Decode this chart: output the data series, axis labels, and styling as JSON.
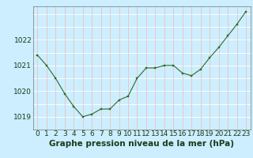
{
  "x": [
    0,
    1,
    2,
    3,
    4,
    5,
    6,
    7,
    8,
    9,
    10,
    11,
    12,
    13,
    14,
    15,
    16,
    17,
    18,
    19,
    20,
    21,
    22,
    23
  ],
  "y": [
    1021.4,
    1021.0,
    1020.5,
    1019.9,
    1019.4,
    1019.0,
    1019.1,
    1019.3,
    1019.3,
    1019.65,
    1019.8,
    1020.5,
    1020.9,
    1020.9,
    1021.0,
    1021.0,
    1020.7,
    1020.6,
    1020.85,
    1021.3,
    1021.7,
    1022.15,
    1022.6,
    1023.1
  ],
  "ylim": [
    1018.5,
    1023.3
  ],
  "yticks": [
    1019,
    1020,
    1021,
    1022
  ],
  "xticks": [
    0,
    1,
    2,
    3,
    4,
    5,
    6,
    7,
    8,
    9,
    10,
    11,
    12,
    13,
    14,
    15,
    16,
    17,
    18,
    19,
    20,
    21,
    22,
    23
  ],
  "line_color": "#2d6a2d",
  "marker_color": "#2d6a2d",
  "bg_color": "#cceeff",
  "grid_color_v": "#e8c8c8",
  "grid_color_h": "#ffffff",
  "title": "Graphe pression niveau de la mer (hPa)",
  "title_color": "#1a3a1a",
  "tick_fontsize": 6.5,
  "title_fontsize": 7.5
}
